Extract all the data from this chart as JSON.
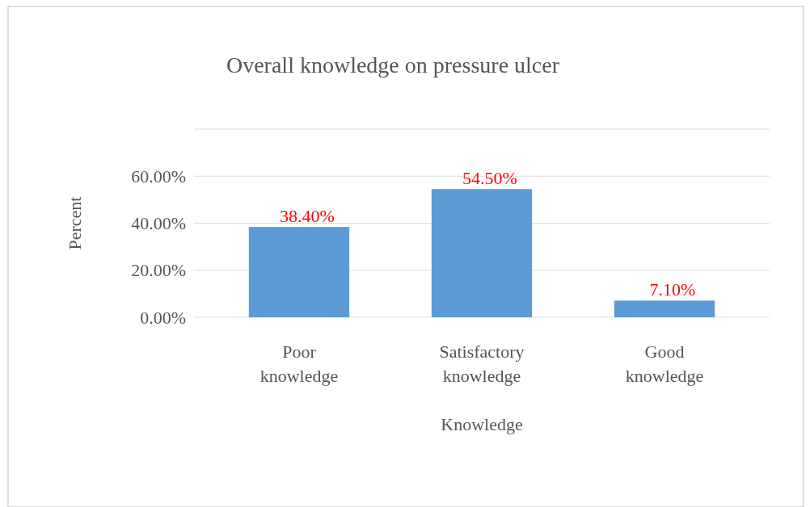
{
  "chart_data": {
    "type": "bar",
    "title": "Overall knowledge  on pressure ulcer",
    "xlabel": "Knowledge",
    "ylabel": "Percent",
    "categories": [
      "Poor\nknowledge",
      "Satisfactory\nknowledge",
      "Good\nknowledge"
    ],
    "values": [
      38.4,
      54.5,
      7.1
    ],
    "color": "#5b9bd5",
    "value_labels": [
      "38.40%",
      "54.50%",
      "7.10%"
    ],
    "ylim": [
      0,
      80
    ],
    "yticks": [
      {
        "value": 0,
        "label": "0.00%"
      },
      {
        "value": 20,
        "label": "20.00%"
      },
      {
        "value": 40,
        "label": "40.00%"
      },
      {
        "value": 60,
        "label": "60.00%"
      },
      {
        "value": 80,
        "label": null
      }
    ],
    "grid": "y"
  }
}
